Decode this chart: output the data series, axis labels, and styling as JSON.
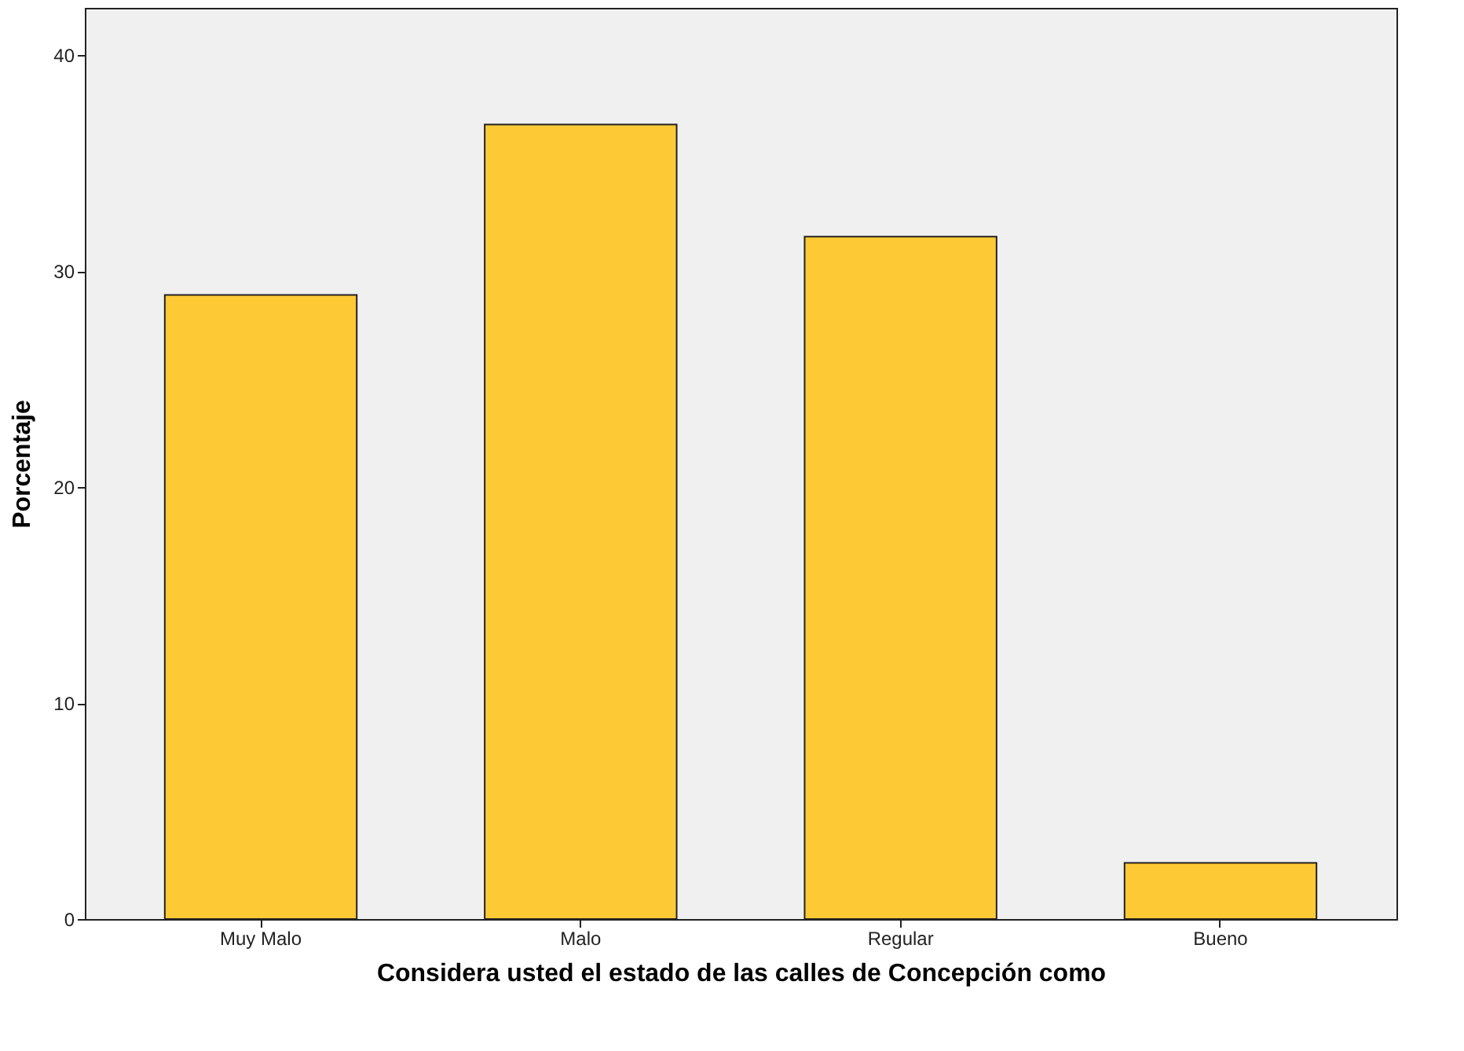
{
  "chart_data": {
    "type": "bar",
    "xlabel": "Considera usted el estado de las calles de Concepción como",
    "ylabel": "Porcentaje",
    "categories": [
      "Muy Malo",
      "Malo",
      "Regular",
      "Bueno"
    ],
    "values": [
      28.9,
      36.8,
      31.6,
      2.6
    ],
    "color": "#fdca35",
    "ylim": [
      0,
      42.2
    ],
    "yticks": [
      0,
      10,
      20,
      30,
      40
    ],
    "grid": false
  }
}
